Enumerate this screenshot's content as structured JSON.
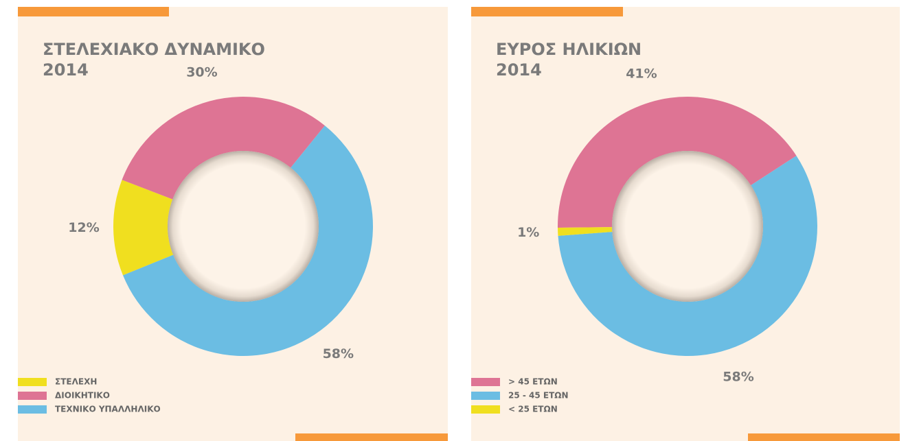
{
  "chart_data": [
    {
      "type": "donut",
      "title": "ΣΤΕΛΕΧΙΑΚΟ ΔΥΝΑΜΙΚΟ",
      "subtitle": "2014",
      "categories": [
        "ΣΤΕΛΕΧΗ",
        "ΔΙΟΙΚΗΤΙΚΟ",
        "ΤΕΧΝΙΚΟ ΥΠΑΛΛΗΛΙΚΟ"
      ],
      "values": [
        12,
        30,
        58
      ],
      "value_labels": [
        "12%",
        "30%",
        "58%"
      ],
      "colors": [
        "#f0df1f",
        "#de7494",
        "#6bbde3"
      ],
      "legend": "bottom-left"
    },
    {
      "type": "donut",
      "title": "ΕΥΡΟΣ ΗΛΙΚΙΩΝ",
      "subtitle": "2014",
      "categories": [
        "> 45 ΕΤΩΝ",
        "25 - 45 ΕΤΩΝ",
        "< 25 ΕΤΩΝ"
      ],
      "values": [
        41,
        58,
        1
      ],
      "value_labels": [
        "41%",
        "58%",
        "1%"
      ],
      "colors": [
        "#de7494",
        "#6bbde3",
        "#f0df1f"
      ],
      "legend": "bottom-left"
    }
  ]
}
